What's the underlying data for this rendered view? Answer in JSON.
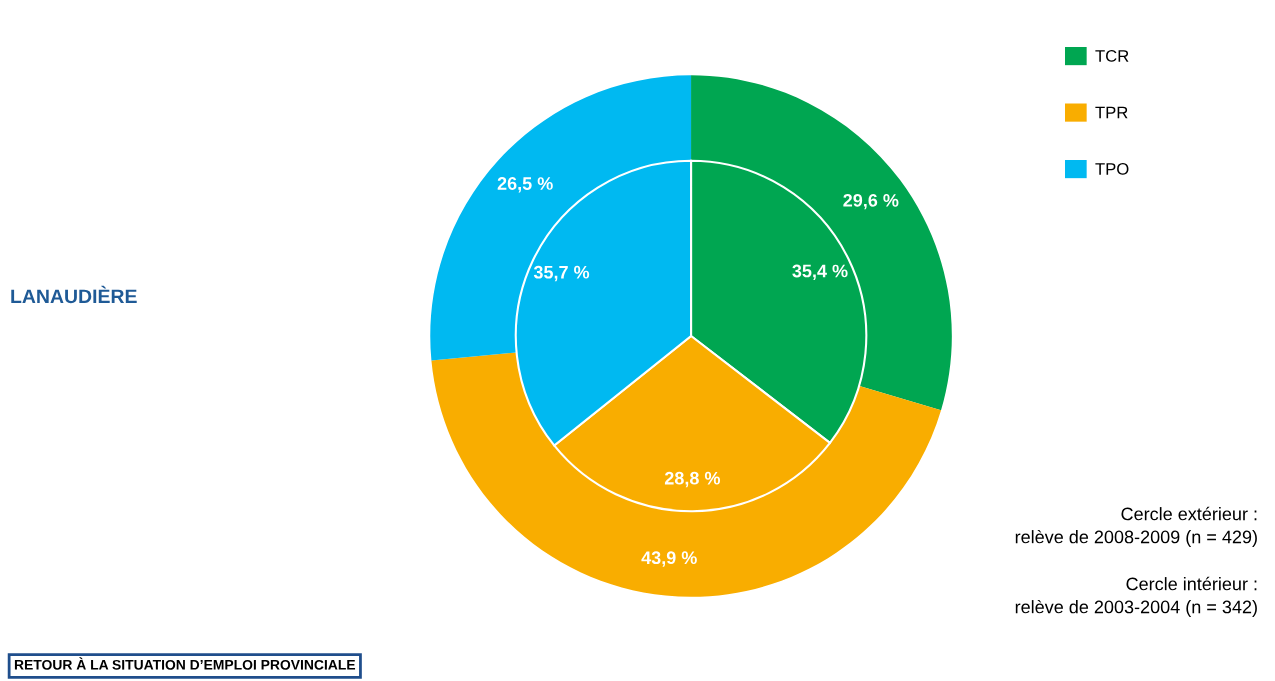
{
  "chart_data": {
    "type": "pie",
    "title": "LANAUDIÈRE",
    "categories": [
      "TCR",
      "TPR",
      "TPO"
    ],
    "series": [
      {
        "values": [
          29.6,
          43.9,
          26.5
        ],
        "colors": [
          "#00a651",
          "#f9ad00",
          "#00b9f1"
        ],
        "value_labels": [
          "29,6 %",
          "43,9 %",
          "26,5 %"
        ]
      },
      {
        "values": [
          35.4,
          28.8,
          35.7
        ],
        "colors": [
          "#00a651",
          "#f9ad00",
          "#00b9f1"
        ],
        "value_labels": [
          "35,4 %",
          "28,8 %",
          "35,7 %"
        ]
      }
    ],
    "legend": "top right",
    "annotations": [
      "Cercle extérieur :\nrelève de 2008-2009 (n = 429)",
      "Cercle intérieur :\nrelève de 2003-2004 (n = 342)",
      "RETOUR À LA SITUATION D’EMPLOI PROVINCIALE"
    ]
  }
}
